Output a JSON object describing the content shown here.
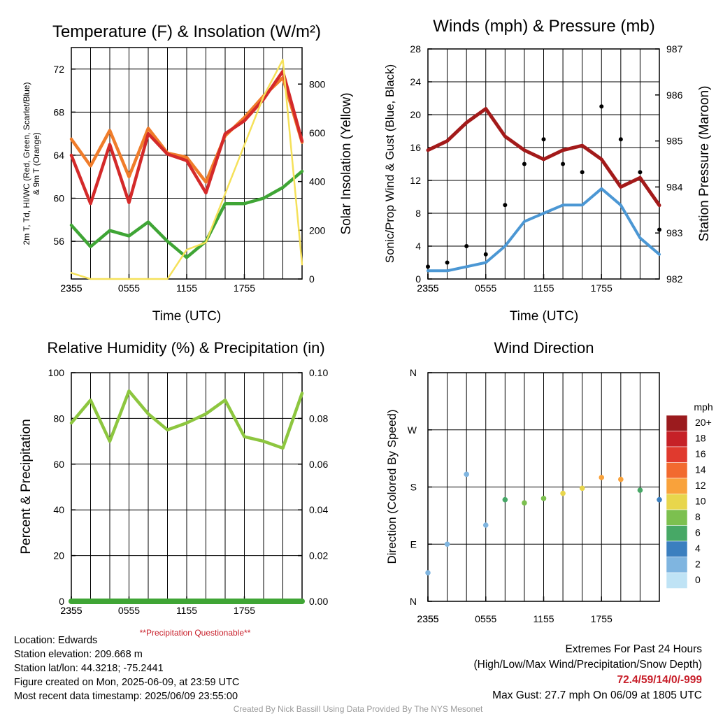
{
  "panels": {
    "temperature": {
      "title": "Temperature (F) & Insolation (W/m²)",
      "ylabel_left_line1": "2m T, Td, HI/WC (Red, Green, Scarlet/Blue)",
      "ylabel_left_line2": "& 9m T (Orange)",
      "ylabel_right": "Solar Insolation (Yellow)",
      "xlabel": "Time (UTC)"
    },
    "winds": {
      "title": "Winds (mph) & Pressure (mb)",
      "ylabel_left": "Sonic/Prop Wind & Gust (Blue, Black)",
      "ylabel_right": "Station Pressure (Maroon)",
      "xlabel": "Time (UTC)"
    },
    "humidity": {
      "title": "Relative Humidity (%) & Precipitation (in)",
      "ylabel_left": "Percent & Precipitation",
      "note": "**Precipitation Questionable**"
    },
    "direction": {
      "title": "Wind Direction",
      "ylabel_left": "Direction (Colored By Speed)",
      "legend_title": "mph",
      "legend_labels": [
        "20+",
        "18",
        "16",
        "14",
        "12",
        "10",
        "8",
        "6",
        "4",
        "2",
        "0"
      ],
      "legend_colors": [
        "#9b1b1e",
        "#c62127",
        "#e03a2e",
        "#f26a2f",
        "#f9a23b",
        "#e8d64c",
        "#7cc04f",
        "#47a866",
        "#3b7fbf",
        "#7fb5e0",
        "#bfe3f5"
      ]
    }
  },
  "meta": {
    "location": "Location: Edwards",
    "elevation": "Station elevation: 209.668 m",
    "latlon": "Station lat/lon: 44.3218; -75.2441",
    "created": "Figure created on Mon, 2025-06-09, at 23:59 UTC",
    "recent": "Most recent data timestamp: 2025/06/09 23:55:00",
    "extremes_title": "Extremes For Past 24 Hours",
    "extremes_desc": "(High/Low/Max Wind/Precipitation/Snow Depth)",
    "extremes_values": "72.4/59/14/0/-999",
    "max_gust": "Max Gust: 27.7 mph On 06/09 at 1805 UTC",
    "credit": "Created By Nick Bassill Using Data Provided By The NYS Mesonet"
  },
  "colors": {
    "temp_red": "#d42a2a",
    "temp_orange": "#f07c2a",
    "dewpoint_green": "#3fa535",
    "insolation_yellow": "#f5e15a",
    "wind_blue": "#4b97d4",
    "gust_black": "#000000",
    "pressure_maroon": "#a31a1a",
    "rh_green": "#8dc63f",
    "precip_green": "#3fa535"
  },
  "chart_data": [
    {
      "id": "temperature",
      "type": "line",
      "title": "Temperature (F) & Insolation (W/m²)",
      "xlabel": "Time (UTC)",
      "x": [
        "2355",
        "0155",
        "0355",
        "0555",
        "0755",
        "0955",
        "1155",
        "1355",
        "1555",
        "1755",
        "1955",
        "2155",
        "2355"
      ],
      "xticks": [
        "2355",
        "0555",
        "1155",
        "1755",
        "2355"
      ],
      "ylim_left": [
        52.5,
        74
      ],
      "yticks_left": [
        56,
        60,
        64,
        68,
        72
      ],
      "ylim_right": [
        0,
        950
      ],
      "yticks_right": [
        0,
        200,
        400,
        600,
        800
      ],
      "series": [
        {
          "name": "9m T",
          "axis": "left",
          "color_key": "temp_orange",
          "values": [
            65.5,
            63,
            66.3,
            62,
            66.5,
            64.2,
            63.8,
            61.5,
            65.8,
            67.5,
            69.5,
            71.2,
            65.2
          ]
        },
        {
          "name": "2m T",
          "axis": "left",
          "color_key": "temp_red",
          "values": [
            64,
            59.5,
            65,
            59.6,
            66,
            64.1,
            63.5,
            60.5,
            66,
            67.2,
            69.2,
            71.8,
            65.3
          ]
        },
        {
          "name": "Td",
          "axis": "left",
          "color_key": "dewpoint_green",
          "values": [
            57.5,
            55.5,
            57,
            56.5,
            57.8,
            56,
            54.5,
            56,
            59.5,
            59.5,
            60,
            61,
            62.5
          ]
        },
        {
          "name": "Solar Insolation",
          "axis": "right",
          "color_key": "insolation_yellow",
          "values": [
            25,
            0,
            0,
            0,
            0,
            0,
            120,
            150,
            350,
            550,
            750,
            900,
            60
          ]
        }
      ]
    },
    {
      "id": "winds",
      "type": "line",
      "title": "Winds (mph) & Pressure (mb)",
      "xlabel": "Time (UTC)",
      "x": [
        "2355",
        "0155",
        "0355",
        "0555",
        "0755",
        "0955",
        "1155",
        "1355",
        "1555",
        "1755",
        "1955",
        "2155",
        "2355"
      ],
      "xticks": [
        "2355",
        "0555",
        "1155",
        "1755",
        "2355"
      ],
      "ylim_left": [
        0,
        28
      ],
      "yticks_left": [
        0,
        4,
        8,
        12,
        16,
        20,
        24,
        28
      ],
      "ylim_right": [
        982,
        987
      ],
      "yticks_right": [
        982,
        983,
        984,
        985,
        986,
        987
      ],
      "series": [
        {
          "name": "Sonic/Prop Wind",
          "axis": "left",
          "color_key": "wind_blue",
          "values": [
            1,
            1,
            1.5,
            2,
            4,
            7,
            8,
            9,
            9,
            11,
            9,
            5,
            3
          ]
        },
        {
          "name": "Gust",
          "axis": "left",
          "color_key": "gust_black",
          "style": "points",
          "values": [
            1.5,
            2,
            4,
            3,
            9,
            14,
            17,
            14,
            13,
            21,
            17,
            13,
            6
          ]
        },
        {
          "name": "Station Pressure",
          "axis": "right",
          "color_key": "pressure_maroon",
          "values": [
            984.8,
            985,
            985.4,
            985.7,
            985.1,
            984.8,
            984.6,
            984.8,
            984.9,
            984.6,
            984.0,
            984.2,
            983.6
          ]
        }
      ]
    },
    {
      "id": "humidity",
      "type": "line",
      "title": "Relative Humidity (%) & Precipitation (in)",
      "x": [
        "2355",
        "0155",
        "0355",
        "0555",
        "0755",
        "0955",
        "1155",
        "1355",
        "1555",
        "1755",
        "1955",
        "2155",
        "2355"
      ],
      "xticks": [
        "2355",
        "0555",
        "1155",
        "1755",
        "2355"
      ],
      "ylim_left": [
        0,
        100
      ],
      "yticks_left": [
        0,
        20,
        40,
        60,
        80,
        100
      ],
      "ylim_right": [
        0,
        0.1
      ],
      "yticks_right": [
        "0.00",
        "0.02",
        "0.04",
        "0.06",
        "0.08",
        "0.10"
      ],
      "series": [
        {
          "name": "Relative Humidity",
          "axis": "left",
          "color_key": "rh_green",
          "values": [
            78,
            88,
            70,
            92,
            82,
            75,
            78,
            82,
            88,
            72,
            70,
            67,
            91
          ]
        },
        {
          "name": "Precipitation",
          "axis": "right",
          "color_key": "precip_green",
          "values": [
            0,
            0,
            0,
            0,
            0,
            0,
            0,
            0,
            0,
            0,
            0,
            0,
            0
          ]
        }
      ]
    },
    {
      "id": "direction",
      "type": "scatter",
      "title": "Wind Direction",
      "x": [
        "2355",
        "0155",
        "0355",
        "0555",
        "0755",
        "0955",
        "1155",
        "1355",
        "1555",
        "1755",
        "1955",
        "2155",
        "2355"
      ],
      "xticks": [
        "2355",
        "0555",
        "1155",
        "1755",
        "2355"
      ],
      "yticks": [
        "N",
        "E",
        "S",
        "W",
        "N"
      ],
      "ylim_deg": [
        0,
        360
      ],
      "series": [
        {
          "name": "Direction",
          "colored_by": "speed",
          "values_deg": [
            45,
            90,
            200,
            120,
            160,
            155,
            162,
            170,
            178,
            195,
            192,
            175,
            160
          ],
          "speeds_mph": [
            1,
            1,
            2,
            1,
            5,
            7,
            8,
            9,
            10,
            12,
            11,
            6,
            4
          ]
        }
      ]
    }
  ]
}
